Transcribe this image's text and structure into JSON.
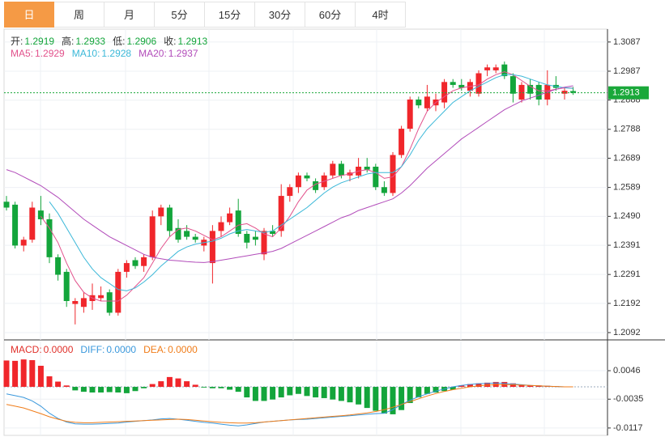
{
  "tabs": [
    "日",
    "周",
    "月",
    "5分",
    "15分",
    "30分",
    "60分",
    "4时"
  ],
  "active_tab": 0,
  "chart_data": [
    {
      "type": "candlestick",
      "up_color": "#f0262b",
      "down_color": "#13a53b",
      "grid": true,
      "ohlc_legend": [
        {
          "name": "开:",
          "value": 1.2919
        },
        {
          "name": "高:",
          "value": 1.2933
        },
        {
          "name": "低:",
          "value": 1.2906
        },
        {
          "name": "收:",
          "value": 1.2913
        }
      ],
      "open": [
        1.254,
        1.253,
        1.239,
        1.241,
        1.251,
        1.248,
        1.235,
        1.23,
        1.219,
        1.218,
        1.22,
        1.221,
        1.223,
        1.216,
        1.23,
        1.234,
        1.232,
        1.235,
        1.249,
        1.252,
        1.245,
        1.244,
        1.242,
        1.239,
        1.233,
        1.244,
        1.247,
        1.251,
        1.243,
        1.242,
        1.236,
        1.244,
        1.244,
        1.256,
        1.259,
        1.263,
        1.261,
        1.259,
        1.263,
        1.267,
        1.263,
        1.263,
        1.266,
        1.266,
        1.259,
        1.257,
        1.27,
        1.279,
        1.289,
        1.286,
        1.287,
        1.288,
        1.295,
        1.294,
        1.292,
        1.291,
        1.299,
        1.299,
        1.301,
        1.297,
        1.289,
        1.294,
        1.294,
        1.289,
        1.294,
        1.291,
        1.2919
      ],
      "high": [
        1.256,
        1.254,
        1.242,
        1.254,
        1.256,
        1.25,
        1.236,
        1.231,
        1.221,
        1.223,
        1.226,
        1.225,
        1.224,
        1.231,
        1.234,
        1.235,
        1.236,
        1.251,
        1.253,
        1.253,
        1.248,
        1.246,
        1.243,
        1.242,
        1.246,
        1.249,
        1.252,
        1.255,
        1.244,
        1.244,
        1.245,
        1.246,
        1.26,
        1.26,
        1.264,
        1.264,
        1.262,
        1.264,
        1.268,
        1.268,
        1.265,
        1.269,
        1.269,
        1.267,
        1.261,
        1.271,
        1.28,
        1.29,
        1.29,
        1.294,
        1.291,
        1.296,
        1.296,
        1.296,
        1.296,
        1.299,
        1.301,
        1.301,
        1.302,
        1.298,
        1.295,
        1.296,
        1.295,
        1.299,
        1.297,
        1.293,
        1.2933
      ],
      "low": [
        1.251,
        1.238,
        1.237,
        1.24,
        1.246,
        1.233,
        1.227,
        1.218,
        1.212,
        1.216,
        1.217,
        1.22,
        1.215,
        1.215,
        1.228,
        1.231,
        1.23,
        1.234,
        1.246,
        1.242,
        1.24,
        1.241,
        1.24,
        1.237,
        1.226,
        1.242,
        1.246,
        1.242,
        1.238,
        1.239,
        1.234,
        1.242,
        1.242,
        1.254,
        1.257,
        1.261,
        1.257,
        1.258,
        1.262,
        1.262,
        1.261,
        1.262,
        1.264,
        1.258,
        1.256,
        1.256,
        1.269,
        1.278,
        1.286,
        1.285,
        1.285,
        1.286,
        1.293,
        1.292,
        1.29,
        1.29,
        1.297,
        1.298,
        1.296,
        1.288,
        1.288,
        1.289,
        1.287,
        1.287,
        1.292,
        1.289,
        1.2906
      ],
      "close": [
        1.252,
        1.239,
        1.241,
        1.252,
        1.248,
        1.235,
        1.229,
        1.22,
        1.22,
        1.221,
        1.222,
        1.222,
        1.216,
        1.23,
        1.233,
        1.232,
        1.235,
        1.249,
        1.252,
        1.244,
        1.241,
        1.242,
        1.241,
        1.241,
        1.244,
        1.247,
        1.25,
        1.243,
        1.24,
        1.241,
        1.244,
        1.243,
        1.256,
        1.259,
        1.263,
        1.262,
        1.258,
        1.263,
        1.267,
        1.263,
        1.264,
        1.266,
        1.265,
        1.259,
        1.257,
        1.27,
        1.279,
        1.289,
        1.287,
        1.29,
        1.289,
        1.295,
        1.294,
        1.293,
        1.295,
        1.298,
        1.3,
        1.3,
        1.297,
        1.291,
        1.294,
        1.291,
        1.289,
        1.294,
        1.293,
        1.292,
        1.2913
      ],
      "series": [
        {
          "name": "MA5:",
          "value": 1.2929,
          "color": "#e2528c",
          "values": [
            null,
            null,
            null,
            null,
            1.249,
            1.245,
            1.24,
            1.233,
            1.227,
            1.223,
            1.221,
            1.22,
            1.22,
            1.22,
            1.222,
            1.225,
            1.228,
            1.233,
            1.238,
            1.242,
            1.2445,
            1.245,
            1.244,
            1.2425,
            1.241,
            1.242,
            1.244,
            1.246,
            1.2465,
            1.245,
            1.243,
            1.242,
            1.245,
            1.249,
            1.254,
            1.258,
            1.26,
            1.261,
            1.262,
            1.263,
            1.2635,
            1.2645,
            1.265,
            1.264,
            1.262,
            1.2625,
            1.266,
            1.272,
            1.279,
            1.285,
            1.288,
            1.29,
            1.292,
            1.293,
            1.2935,
            1.294,
            1.296,
            1.2975,
            1.2985,
            1.2975,
            1.2955,
            1.2935,
            1.292,
            1.292,
            1.2925,
            1.293,
            1.2929
          ]
        },
        {
          "name": "MA10:",
          "value": 1.2928,
          "color": "#3bb8d8",
          "values": [
            null,
            null,
            null,
            null,
            null,
            1.254,
            1.25,
            1.245,
            1.24,
            1.235,
            1.231,
            1.228,
            1.226,
            1.224,
            1.2235,
            1.2245,
            1.2265,
            1.229,
            1.232,
            1.2345,
            1.237,
            1.2385,
            1.2395,
            1.24,
            1.2405,
            1.2415,
            1.243,
            1.244,
            1.2445,
            1.244,
            1.2435,
            1.244,
            1.246,
            1.248,
            1.25,
            1.252,
            1.2545,
            1.257,
            1.259,
            1.2605,
            1.2615,
            1.2625,
            1.2635,
            1.264,
            1.264,
            1.264,
            1.266,
            1.27,
            1.275,
            1.279,
            1.282,
            1.285,
            1.288,
            1.29,
            1.292,
            1.2935,
            1.295,
            1.2965,
            1.2975,
            1.2975,
            1.297,
            1.296,
            1.295,
            1.294,
            1.2935,
            1.293,
            1.2928
          ]
        },
        {
          "name": "MA20:",
          "value": 1.2937,
          "color": "#b24cba",
          "values": [
            1.265,
            1.264,
            1.2625,
            1.261,
            1.2595,
            1.2575,
            1.2555,
            1.253,
            1.2505,
            1.248,
            1.246,
            1.244,
            1.242,
            1.2405,
            1.239,
            1.2375,
            1.236,
            1.235,
            1.2345,
            1.234,
            1.2338,
            1.2335,
            1.2333,
            1.2332,
            1.2335,
            1.234,
            1.2345,
            1.235,
            1.2355,
            1.236,
            1.2365,
            1.237,
            1.238,
            1.2395,
            1.241,
            1.2425,
            1.244,
            1.2455,
            1.247,
            1.2485,
            1.2495,
            1.251,
            1.252,
            1.253,
            1.254,
            1.255,
            1.257,
            1.2595,
            1.2625,
            1.2655,
            1.268,
            1.2705,
            1.273,
            1.2755,
            1.2775,
            1.2795,
            1.2815,
            1.2835,
            1.2855,
            1.287,
            1.2885,
            1.2895,
            1.2905,
            1.2915,
            1.2925,
            1.2932,
            1.2937
          ]
        }
      ],
      "last_price": 1.2913,
      "last_price_color": "#1aa83a",
      "ylim": [
        1.2067,
        1.3131
      ],
      "yticks": [
        1.3087,
        1.2987,
        1.2888,
        1.2788,
        1.2689,
        1.2589,
        {
          "value": 1.249,
          "label": "1.2490"
        },
        1.2391,
        1.2291,
        1.2192,
        1.2092
      ]
    },
    {
      "type": "macd",
      "up_color": "#f0262b",
      "down_color": "#13a53b",
      "grid": true,
      "bars": {
        "name": "MACD:",
        "value": {
          "value": 0,
          "label": "0.0000"
        },
        "color": "#e0312b",
        "values": [
          0.0075,
          0.0074,
          0.0078,
          0.0076,
          0.006,
          0.003,
          0.0015,
          0.0004,
          -0.001,
          -0.0014,
          -0.0016,
          -0.0016,
          -0.0015,
          -0.0016,
          -0.0018,
          -0.0012,
          -0.0004,
          0.0008,
          0.0016,
          0.0028,
          0.0024,
          0.0016,
          0.0006,
          -0.0002,
          -0.0004,
          -0.0004,
          -0.0008,
          -0.0014,
          -0.003,
          -0.004,
          -0.004,
          -0.0036,
          -0.003,
          -0.0024,
          -0.002,
          -0.0026,
          -0.003,
          -0.0032,
          -0.0036,
          -0.004,
          -0.0044,
          -0.005,
          -0.006,
          -0.0068,
          -0.0076,
          -0.0078,
          -0.0066,
          -0.0046,
          -0.003,
          -0.002,
          -0.0016,
          -0.0012,
          -0.0008,
          0.0004,
          0.0008,
          0.001,
          0.0012,
          0.0014,
          0.0014,
          0.001,
          0.0006,
          0.0004,
          0.0004,
          0.0003,
          0.0002,
          0.0001,
          0.0
        ]
      },
      "series": [
        {
          "name": "DIFF:",
          "value": {
            "value": 0,
            "label": "0.0000"
          },
          "color": "#3a98dc",
          "values": [
            -0.002,
            -0.0025,
            -0.003,
            -0.004,
            -0.0055,
            -0.0075,
            -0.009,
            -0.01,
            -0.0105,
            -0.0106,
            -0.0106,
            -0.0105,
            -0.0104,
            -0.0103,
            -0.01,
            -0.0098,
            -0.0096,
            -0.0094,
            -0.0091,
            -0.009,
            -0.0092,
            -0.0095,
            -0.0098,
            -0.0101,
            -0.0103,
            -0.0106,
            -0.0109,
            -0.0111,
            -0.0108,
            -0.0104,
            -0.01,
            -0.0098,
            -0.0096,
            -0.0094,
            -0.0093,
            -0.0092,
            -0.009,
            -0.0088,
            -0.0086,
            -0.0084,
            -0.0082,
            -0.008,
            -0.0078,
            -0.0076,
            -0.0075,
            -0.0065,
            -0.005,
            -0.0038,
            -0.0028,
            -0.002,
            -0.0012,
            -0.0006,
            0.0,
            0.0004,
            0.0007,
            0.0009,
            0.001,
            0.0011,
            0.001,
            0.0008,
            0.0006,
            0.0004,
            0.0003,
            0.0002,
            0.0001,
            0.0,
            0.0
          ]
        },
        {
          "name": "DEA:",
          "value": {
            "value": 0,
            "label": "0.0000"
          },
          "color": "#f07d1a",
          "values": [
            -0.005,
            -0.0055,
            -0.006,
            -0.0068,
            -0.0076,
            -0.0085,
            -0.0092,
            -0.0098,
            -0.0101,
            -0.0102,
            -0.0102,
            -0.0101,
            -0.01,
            -0.0099,
            -0.0098,
            -0.0097,
            -0.0096,
            -0.0095,
            -0.0094,
            -0.0093,
            -0.0092,
            -0.0093,
            -0.0095,
            -0.0097,
            -0.0099,
            -0.0101,
            -0.0102,
            -0.0103,
            -0.0103,
            -0.0102,
            -0.01,
            -0.0098,
            -0.0096,
            -0.0094,
            -0.0092,
            -0.009,
            -0.0088,
            -0.0086,
            -0.0084,
            -0.0082,
            -0.008,
            -0.0077,
            -0.0074,
            -0.007,
            -0.0065,
            -0.0058,
            -0.005,
            -0.0042,
            -0.0034,
            -0.0026,
            -0.0019,
            -0.0013,
            -0.0008,
            -0.0004,
            0.0,
            0.0003,
            0.0005,
            0.0006,
            0.0006,
            0.0006,
            0.0005,
            0.0004,
            0.0003,
            0.0002,
            0.0001,
            0.0,
            0.0
          ]
        }
      ],
      "ylim": [
        -0.0138,
        0.0129
      ],
      "yticks": [
        0.0046,
        -0.0035,
        -0.0117
      ]
    }
  ]
}
